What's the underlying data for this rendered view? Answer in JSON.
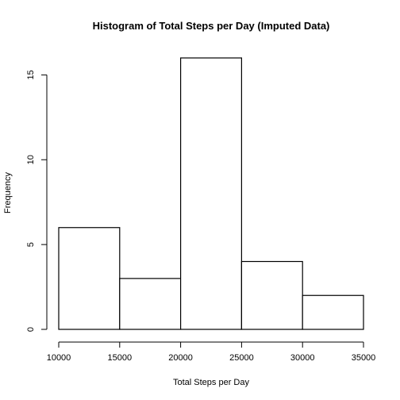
{
  "chart_data": {
    "type": "bar",
    "title": "Histogram of Total Steps per Day (Imputed Data)",
    "xlabel": "Total Steps per Day",
    "ylabel": "Frequency",
    "bins": [
      {
        "start": 10000,
        "end": 15000,
        "count": 6
      },
      {
        "start": 15000,
        "end": 20000,
        "count": 3
      },
      {
        "start": 20000,
        "end": 25000,
        "count": 16
      },
      {
        "start": 25000,
        "end": 30000,
        "count": 4
      },
      {
        "start": 30000,
        "end": 35000,
        "count": 2
      }
    ],
    "xlim": [
      10000,
      35000
    ],
    "ylim": [
      0,
      16
    ],
    "x_ticks": [
      10000,
      15000,
      20000,
      25000,
      30000,
      35000
    ],
    "x_tick_labels": [
      "10000",
      "15000",
      "20000",
      "25000",
      "30000",
      "35000"
    ],
    "y_ticks": [
      0,
      5,
      10,
      15
    ],
    "y_tick_labels": [
      "0",
      "5",
      "10",
      "15"
    ],
    "grid": false,
    "legend": "none"
  }
}
